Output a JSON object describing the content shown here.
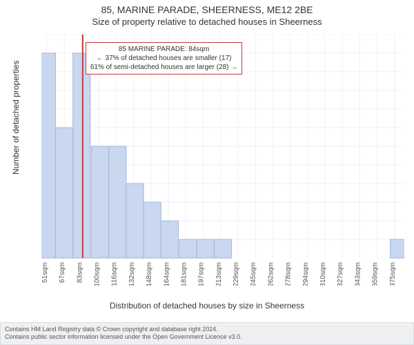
{
  "title": "85, MARINE PARADE, SHEERNESS, ME12 2BE",
  "subtitle": "Size of property relative to detached houses in Sheerness",
  "y_axis_label": "Number of detached properties",
  "x_axis_label": "Distribution of detached houses by size in Sheerness",
  "chart": {
    "type": "histogram",
    "ylim": [
      0,
      12
    ],
    "yticks": [
      1,
      2,
      3,
      4,
      5,
      6,
      7,
      8,
      9,
      10,
      11,
      12
    ],
    "xlim_sqm": [
      46,
      380
    ],
    "xtick_step_sqm": 16,
    "xtick_start_sqm": 51,
    "xtick_labels": [
      "51sqm",
      "67sqm",
      "83sqm",
      "100sqm",
      "116sqm",
      "132sqm",
      "148sqm",
      "164sqm",
      "181sqm",
      "197sqm",
      "213sqm",
      "229sqm",
      "245sqm",
      "262sqm",
      "278sqm",
      "294sqm",
      "310sqm",
      "327sqm",
      "343sqm",
      "359sqm",
      "375sqm"
    ],
    "bars": [
      {
        "x_sqm": 51,
        "count": 11
      },
      {
        "x_sqm": 67,
        "count": 7
      },
      {
        "x_sqm": 83,
        "count": 11
      },
      {
        "x_sqm": 100,
        "count": 6
      },
      {
        "x_sqm": 116,
        "count": 6
      },
      {
        "x_sqm": 132,
        "count": 4
      },
      {
        "x_sqm": 148,
        "count": 3
      },
      {
        "x_sqm": 164,
        "count": 2
      },
      {
        "x_sqm": 181,
        "count": 1
      },
      {
        "x_sqm": 197,
        "count": 1
      },
      {
        "x_sqm": 213,
        "count": 1
      },
      {
        "x_sqm": 229,
        "count": 0
      },
      {
        "x_sqm": 245,
        "count": 0
      },
      {
        "x_sqm": 262,
        "count": 0
      },
      {
        "x_sqm": 278,
        "count": 0
      },
      {
        "x_sqm": 294,
        "count": 0
      },
      {
        "x_sqm": 310,
        "count": 0
      },
      {
        "x_sqm": 327,
        "count": 0
      },
      {
        "x_sqm": 343,
        "count": 0
      },
      {
        "x_sqm": 359,
        "count": 0
      },
      {
        "x_sqm": 375,
        "count": 1
      }
    ],
    "bar_fill": "#c9d7ef",
    "bar_stroke": "#9fb6dd",
    "marker_line_sqm": 84,
    "marker_line_color": "#c13a3a",
    "marker_line_width": 2,
    "grid_color": "#eef1f7",
    "background_color": "#ffffff",
    "tick_font_size": 10,
    "axis_font_size": 12
  },
  "annotation": {
    "line1": "85 MARINE PARADE: 84sqm",
    "line2": "← 37% of detached houses are smaller (17)",
    "line3": "61% of semi-detached houses are larger (28) →",
    "border_color": "#c13a3a",
    "font_size": 10
  },
  "footer": {
    "line1": "Contains HM Land Registry data © Crown copyright and database right 2024.",
    "line2": "Contains public sector information licensed under the Open Government Licence v3.0.",
    "background_color": "#eef0f2",
    "border_color": "#d9dcdf",
    "font_size": 9
  }
}
